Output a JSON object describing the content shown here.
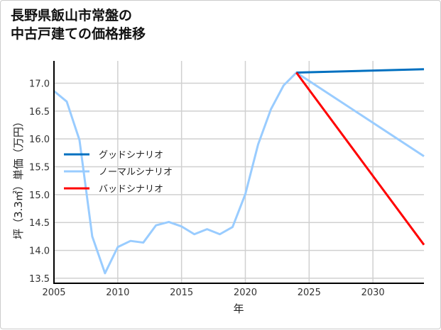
{
  "chart_data": {
    "type": "line",
    "title_lines": [
      "長野県飯山市常盤の",
      "中古戸建ての価格推移"
    ],
    "xlabel": "年",
    "ylabel": "坪（3.3㎡）単価（万円）",
    "xlim": [
      2005,
      2034
    ],
    "ylim": [
      13.41,
      17.4
    ],
    "xticks": [
      2005,
      2010,
      2015,
      2020,
      2025,
      2030
    ],
    "yticks": [
      13.5,
      14.0,
      14.5,
      15.0,
      15.5,
      16.0,
      16.5,
      17.0
    ],
    "ytick_labels": [
      "13.5",
      "14.0",
      "14.5",
      "15.0",
      "15.5",
      "16.0",
      "16.5",
      "17.0"
    ],
    "grid": true,
    "legend_position": "center-left",
    "series": [
      {
        "name": "グッドシナリオ",
        "color": "#0070c0",
        "x": [
          2024,
          2034
        ],
        "y": [
          17.19,
          17.25
        ]
      },
      {
        "name": "ノーマルシナリオ",
        "color": "#99ccff",
        "x": [
          2005,
          2006,
          2007,
          2008,
          2009,
          2010,
          2011,
          2012,
          2013,
          2014,
          2015,
          2016,
          2017,
          2018,
          2019,
          2020,
          2021,
          2022,
          2023,
          2024,
          2034
        ],
        "y": [
          16.86,
          16.67,
          15.98,
          14.25,
          13.59,
          14.06,
          14.17,
          14.14,
          14.45,
          14.51,
          14.43,
          14.29,
          14.38,
          14.29,
          14.42,
          15.01,
          15.9,
          16.53,
          16.96,
          17.19,
          15.69
        ]
      },
      {
        "name": "バッドシナリオ",
        "color": "#ff0000",
        "x": [
          2024,
          2034
        ],
        "y": [
          17.19,
          14.1
        ]
      }
    ]
  }
}
